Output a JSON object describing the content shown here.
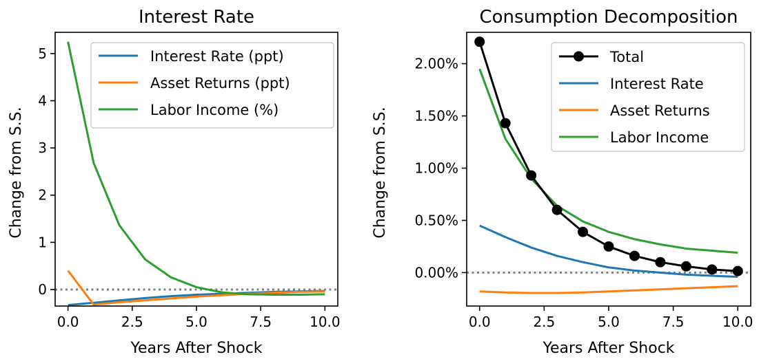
{
  "chart_data": [
    {
      "type": "line",
      "title": "Interest Rate",
      "xlabel": "Years After Shock",
      "ylabel": "Change from S.S.",
      "xlim": [
        -0.5,
        10.5
      ],
      "ylim": [
        -0.35,
        5.45
      ],
      "xticks": [
        0,
        2.5,
        5,
        7.5,
        10
      ],
      "xtick_labels": [
        "0.0",
        "2.5",
        "5.0",
        "7.5",
        "10.0"
      ],
      "yticks": [
        0,
        1,
        2,
        3,
        4,
        5
      ],
      "ytick_labels": [
        "0",
        "1",
        "2",
        "3",
        "4",
        "5"
      ],
      "reference_line": {
        "y": 0,
        "style": "dotted",
        "color": "#808080"
      },
      "legend_position": "top-right",
      "x": [
        0,
        1,
        2,
        3,
        4,
        5,
        6,
        7,
        8,
        9,
        10
      ],
      "series": [
        {
          "name": "Interest Rate (ppt)",
          "color": "#1f77b4",
          "values": [
            -0.33,
            -0.28,
            -0.23,
            -0.18,
            -0.14,
            -0.11,
            -0.09,
            -0.07,
            -0.05,
            -0.04,
            -0.03
          ]
        },
        {
          "name": "Asset Returns (ppt)",
          "color": "#ff7f0e",
          "values": [
            0.4,
            -0.32,
            -0.27,
            -0.23,
            -0.19,
            -0.15,
            -0.12,
            -0.09,
            -0.07,
            -0.05,
            -0.04
          ]
        },
        {
          "name": "Labor Income (%)",
          "color": "#2ca02c",
          "values": [
            5.25,
            2.68,
            1.36,
            0.64,
            0.26,
            0.05,
            -0.06,
            -0.1,
            -0.11,
            -0.11,
            -0.1
          ]
        }
      ]
    },
    {
      "type": "line",
      "title": "Consumption Decomposition",
      "xlabel": "Years After Shock",
      "ylabel": "Change from S.S.",
      "xlim": [
        -0.5,
        10.5
      ],
      "ylim": [
        -0.32,
        2.3
      ],
      "y_unit": "%",
      "xticks": [
        0,
        2.5,
        5,
        7.5,
        10
      ],
      "xtick_labels": [
        "0.0",
        "2.5",
        "5.0",
        "7.5",
        "10.0"
      ],
      "yticks": [
        0,
        0.5,
        1,
        1.5,
        2
      ],
      "ytick_labels": [
        "0.00%",
        "0.50%",
        "1.00%",
        "1.50%",
        "2.00%"
      ],
      "reference_line": {
        "y": 0,
        "style": "dotted",
        "color": "#808080"
      },
      "legend_position": "top-right",
      "x": [
        0,
        1,
        2,
        3,
        4,
        5,
        6,
        7,
        8,
        9,
        10
      ],
      "series": [
        {
          "name": "Total",
          "color": "#000000",
          "markers": true,
          "values": [
            2.21,
            1.43,
            0.93,
            0.6,
            0.39,
            0.25,
            0.16,
            0.1,
            0.06,
            0.03,
            0.015
          ]
        },
        {
          "name": "Interest Rate",
          "color": "#1f77b4",
          "values": [
            0.45,
            0.34,
            0.24,
            0.16,
            0.1,
            0.05,
            0.02,
            0.0,
            -0.02,
            -0.03,
            -0.04
          ]
        },
        {
          "name": "Asset Returns",
          "color": "#ff7f0e",
          "values": [
            -0.18,
            -0.19,
            -0.195,
            -0.195,
            -0.19,
            -0.18,
            -0.17,
            -0.16,
            -0.15,
            -0.14,
            -0.13
          ]
        },
        {
          "name": "Labor Income",
          "color": "#2ca02c",
          "values": [
            1.95,
            1.28,
            0.9,
            0.64,
            0.49,
            0.39,
            0.32,
            0.27,
            0.23,
            0.21,
            0.19
          ]
        }
      ]
    }
  ]
}
